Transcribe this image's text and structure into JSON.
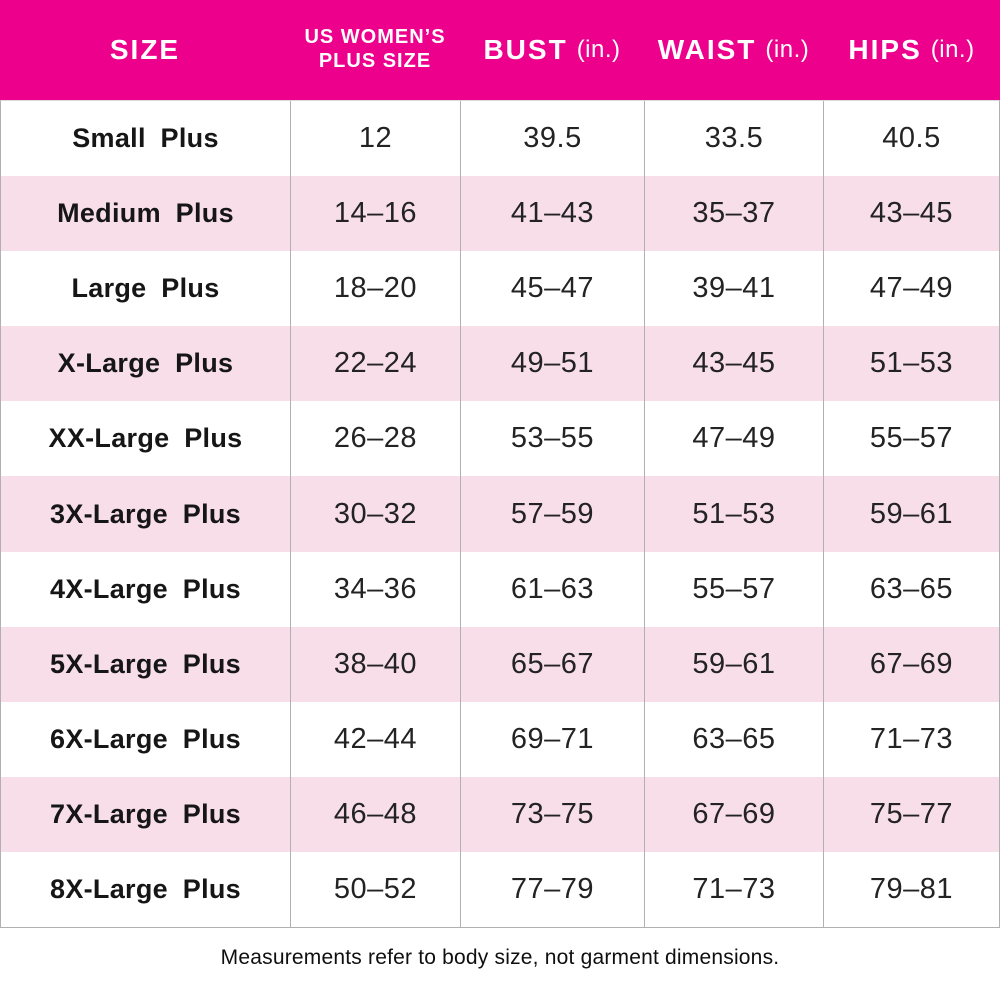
{
  "colors": {
    "header_bg": "#EC008C",
    "header_text": "#FFFFFF",
    "stripe_bg": "#F8DEE9",
    "border": "#B0B0B0",
    "body_text": "#1C1C1C"
  },
  "chart_data": {
    "type": "table",
    "header": {
      "col1_label": "SIZE",
      "col2_line1": "US WOMEN’S",
      "col2_line2": "PLUS SIZE",
      "col3_name": "BUST",
      "col3_unit": "(in.)",
      "col4_name": "WAIST",
      "col4_unit": "(in.)",
      "col5_name": "HIPS",
      "col5_unit": "(in.)"
    },
    "columns": [
      "SIZE",
      "US WOMEN’S PLUS SIZE",
      "BUST (in.)",
      "WAIST (in.)",
      "HIPS (in.)"
    ],
    "rows": [
      {
        "size": "Small Plus",
        "us_plus_size": "12",
        "bust": "39.5",
        "waist": "33.5",
        "hips": "40.5"
      },
      {
        "size": "Medium Plus",
        "us_plus_size": "14–16",
        "bust": "41–43",
        "waist": "35–37",
        "hips": "43–45"
      },
      {
        "size": "Large Plus",
        "us_plus_size": "18–20",
        "bust": "45–47",
        "waist": "39–41",
        "hips": "47–49"
      },
      {
        "size": "X-Large Plus",
        "us_plus_size": "22–24",
        "bust": "49–51",
        "waist": "43–45",
        "hips": "51–53"
      },
      {
        "size": "XX-Large Plus",
        "us_plus_size": "26–28",
        "bust": "53–55",
        "waist": "47–49",
        "hips": "55–57"
      },
      {
        "size": "3X-Large Plus",
        "us_plus_size": "30–32",
        "bust": "57–59",
        "waist": "51–53",
        "hips": "59–61"
      },
      {
        "size": "4X-Large Plus",
        "us_plus_size": "34–36",
        "bust": "61–63",
        "waist": "55–57",
        "hips": "63–65"
      },
      {
        "size": "5X-Large Plus",
        "us_plus_size": "38–40",
        "bust": "65–67",
        "waist": "59–61",
        "hips": "67–69"
      },
      {
        "size": "6X-Large Plus",
        "us_plus_size": "42–44",
        "bust": "69–71",
        "waist": "63–65",
        "hips": "71–73"
      },
      {
        "size": "7X-Large Plus",
        "us_plus_size": "46–48",
        "bust": "73–75",
        "waist": "67–69",
        "hips": "75–77"
      },
      {
        "size": "8X-Large Plus",
        "us_plus_size": "50–52",
        "bust": "77–79",
        "waist": "71–73",
        "hips": "79–81"
      }
    ],
    "footnote": "Measurements refer to body size, not garment dimensions."
  }
}
